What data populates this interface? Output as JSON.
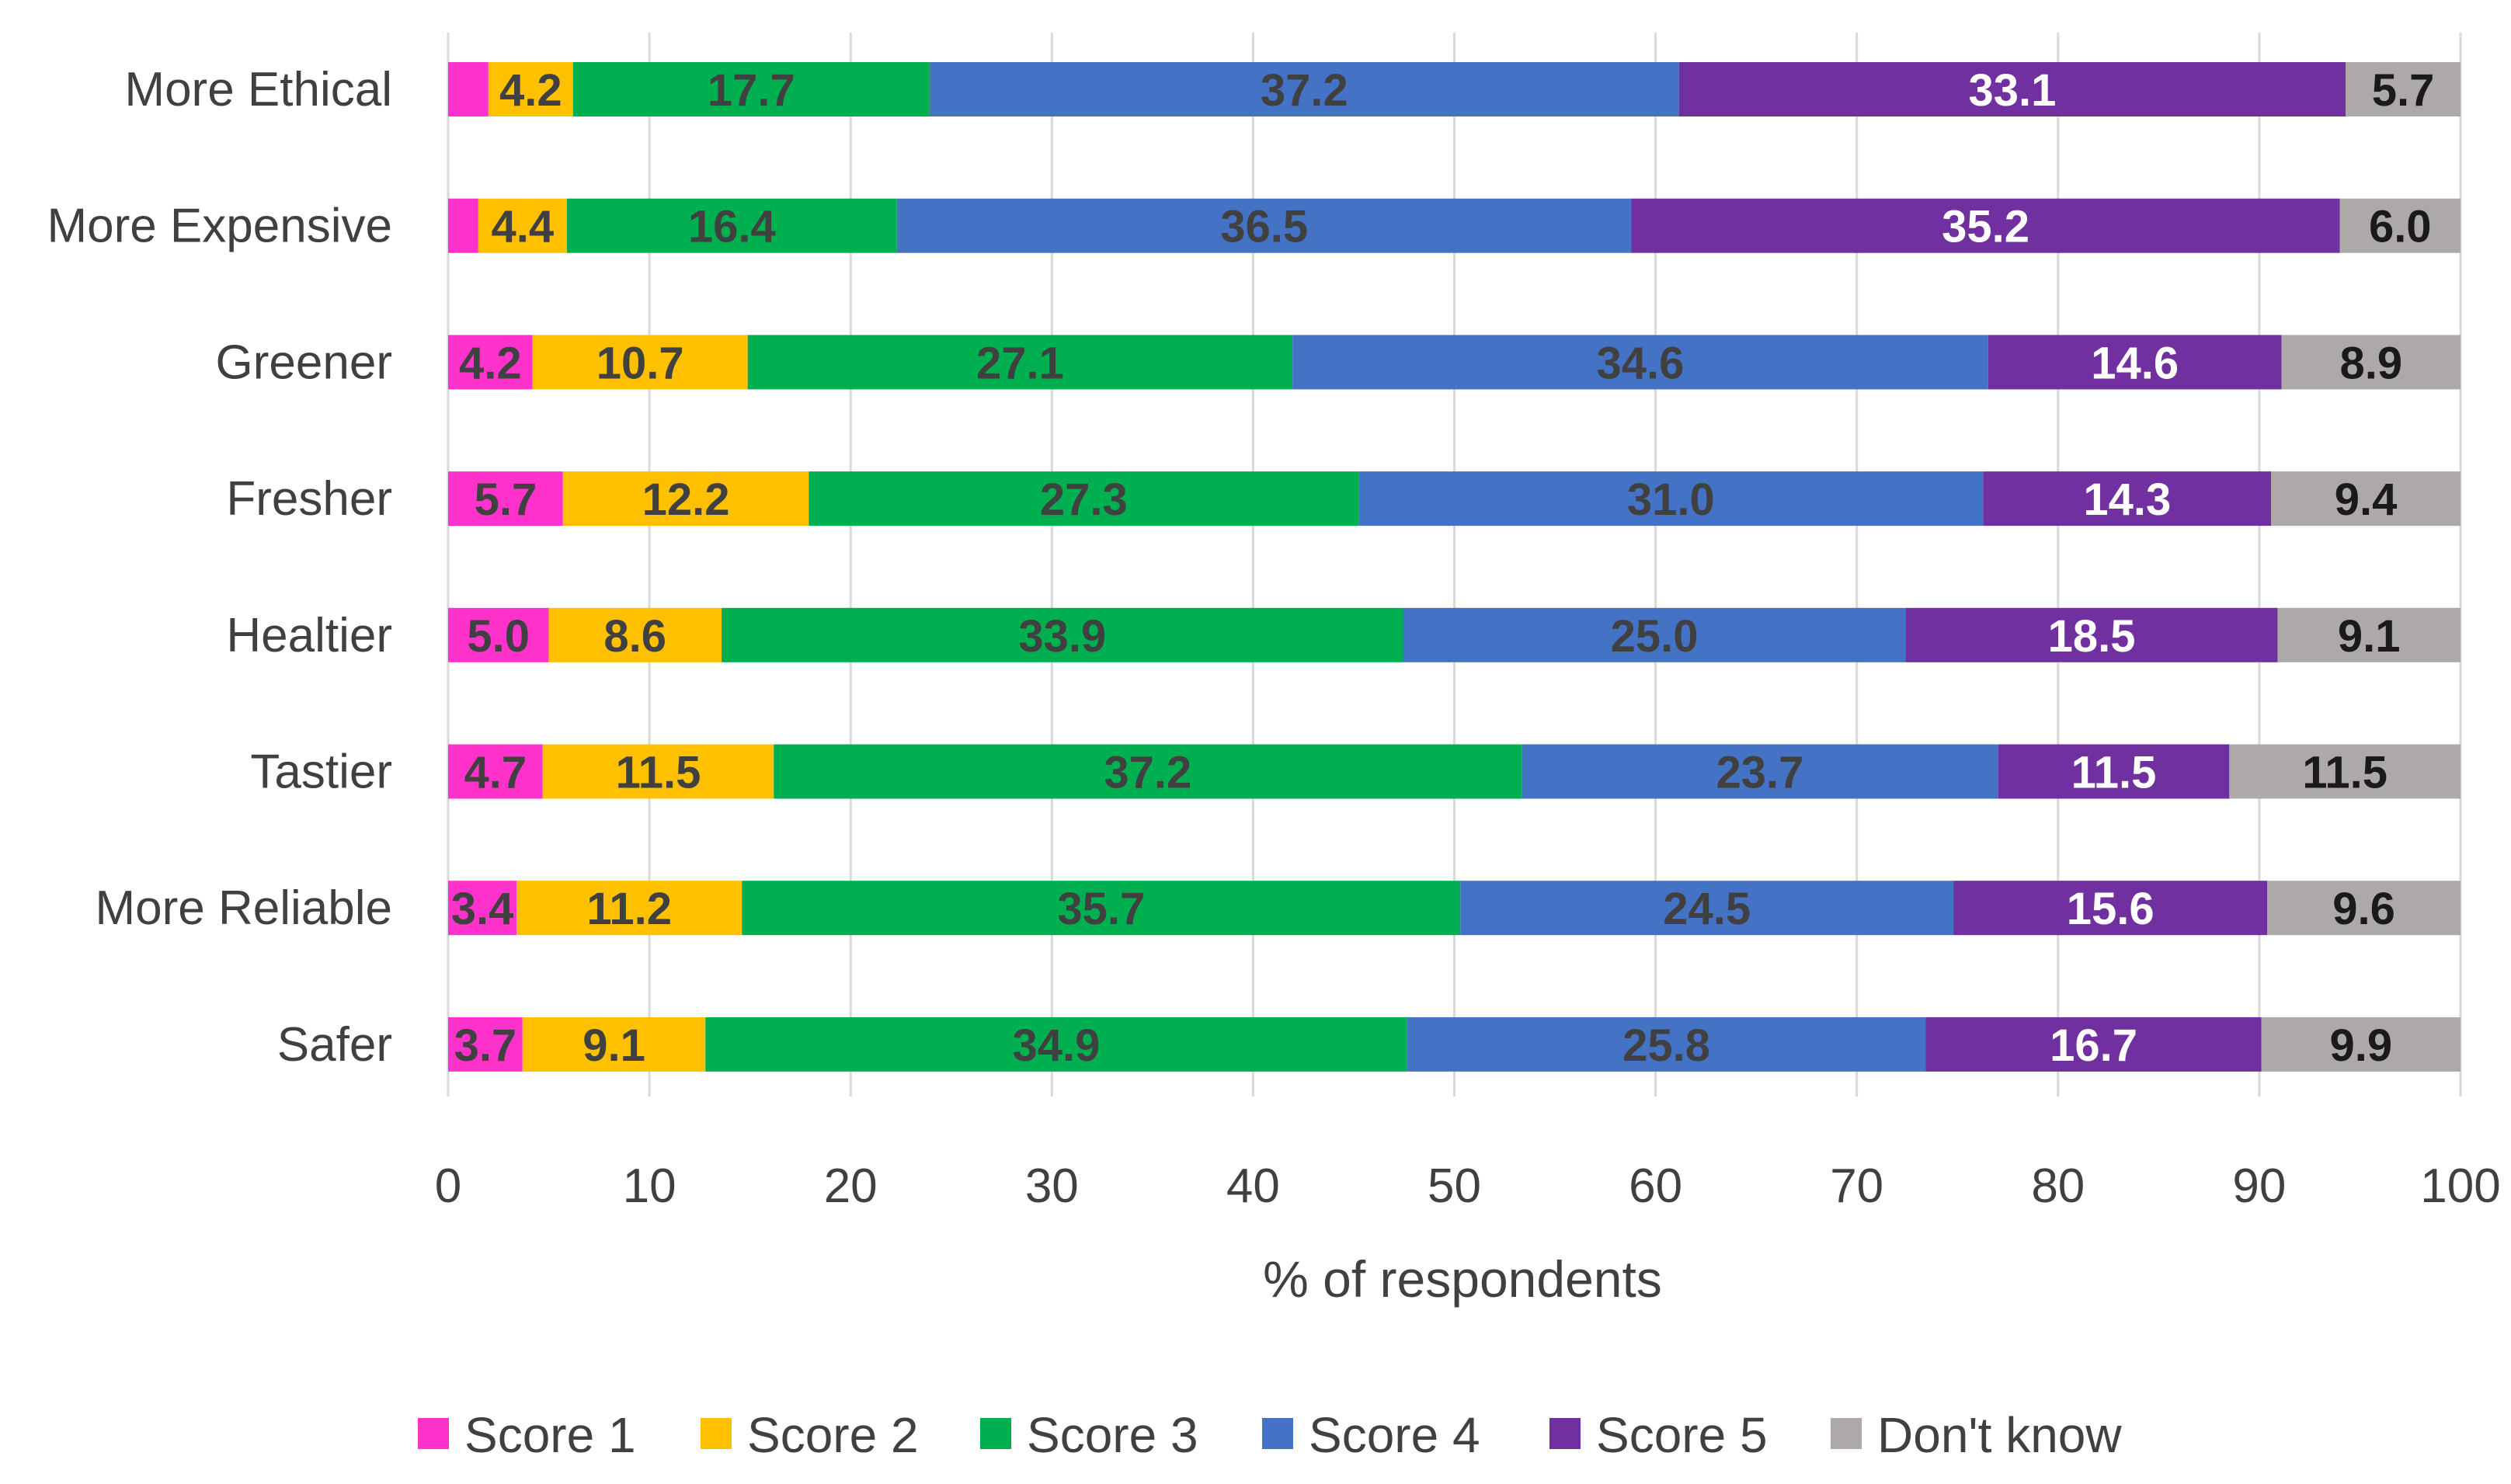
{
  "chart_data": {
    "type": "bar",
    "orientation": "horizontal",
    "stacked": true,
    "title": "",
    "xlabel": "% of respondents",
    "ylabel": "",
    "xlim": [
      0,
      100
    ],
    "x_ticks": [
      0,
      10,
      20,
      30,
      40,
      50,
      60,
      70,
      80,
      90,
      100
    ],
    "grid": true,
    "legend_position": "bottom",
    "categories": [
      "More Ethical",
      "More Expensive",
      "Greener",
      "Fresher",
      "Healtier",
      "Tastier",
      "More Reliable",
      "Safer"
    ],
    "series": [
      {
        "name": "Score 1",
        "color": "#FF33CC",
        "label_color": "#404040",
        "values": [
          2.0,
          1.5,
          4.2,
          5.7,
          5.0,
          4.7,
          3.4,
          3.7
        ],
        "labels": [
          "",
          "",
          "4.2",
          "5.7",
          "5.0",
          "4.7",
          "3.4",
          "3.7"
        ]
      },
      {
        "name": "Score 2",
        "color": "#FFC000",
        "label_color": "#404040",
        "values": [
          4.2,
          4.4,
          10.7,
          12.2,
          8.6,
          11.5,
          11.2,
          9.1
        ],
        "labels": [
          "4.2",
          "4.4",
          "10.7",
          "12.2",
          "8.6",
          "11.5",
          "11.2",
          "9.1"
        ]
      },
      {
        "name": "Score 3",
        "color": "#00B050",
        "label_color": "#404040",
        "values": [
          17.7,
          16.4,
          27.1,
          27.3,
          33.9,
          37.2,
          35.7,
          34.9
        ],
        "labels": [
          "17.7",
          "16.4",
          "27.1",
          "27.3",
          "33.9",
          "37.2",
          "35.7",
          "34.9"
        ]
      },
      {
        "name": "Score 4",
        "color": "#4472C4",
        "label_color": "#404040",
        "values": [
          37.2,
          36.5,
          34.6,
          31.0,
          25.0,
          23.7,
          24.5,
          25.8
        ],
        "labels": [
          "37.2",
          "36.5",
          "34.6",
          "31.0",
          "25.0",
          "23.7",
          "24.5",
          "25.8"
        ]
      },
      {
        "name": "Score 5",
        "color": "#7030A0",
        "label_color": "#FFFFFF",
        "values": [
          33.1,
          35.2,
          14.6,
          14.3,
          18.5,
          11.5,
          15.6,
          16.7
        ],
        "labels": [
          "33.1",
          "35.2",
          "14.6",
          "14.3",
          "18.5",
          "11.5",
          "15.6",
          "16.7"
        ]
      },
      {
        "name": "Don't know",
        "color": "#ADA9A9",
        "label_color": "#1A1A1A",
        "values": [
          5.7,
          6.0,
          8.9,
          9.4,
          9.1,
          11.5,
          9.6,
          9.9
        ],
        "labels": [
          "5.7",
          "6.0",
          "8.9",
          "9.4",
          "9.1",
          "11.5",
          "9.6",
          "9.9"
        ]
      }
    ],
    "colors": {
      "gridline": "#D9D9D9",
      "text": "#404040"
    }
  }
}
